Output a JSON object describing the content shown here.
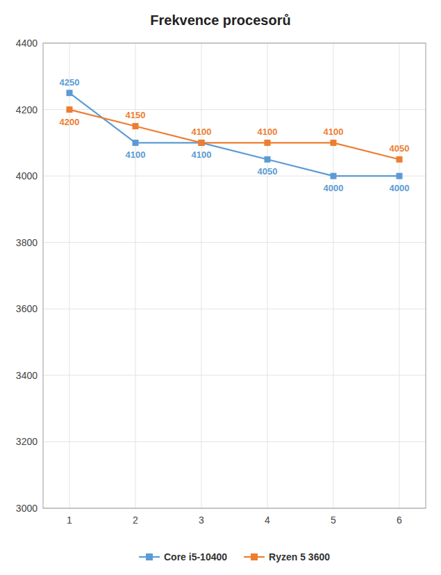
{
  "chart_data": {
    "type": "line",
    "title": "Frekvence procesorů",
    "x": [
      1,
      2,
      3,
      4,
      5,
      6
    ],
    "series": [
      {
        "name": "Core i5-10400",
        "color": "#5B9BD5",
        "values": [
          4250,
          4100,
          4100,
          4050,
          4000,
          4000
        ]
      },
      {
        "name": "Ryzen 5 3600",
        "color": "#ED7D31",
        "values": [
          4200,
          4150,
          4100,
          4100,
          4100,
          4050
        ]
      }
    ],
    "xlim": [
      0.6,
      6.4
    ],
    "xticks": [
      1,
      2,
      3,
      4,
      5,
      6
    ],
    "ylim": [
      3000,
      4400
    ],
    "yticks": [
      3000,
      3200,
      3400,
      3600,
      3800,
      4000,
      4200,
      4400
    ],
    "grid": true,
    "legend": "bottom",
    "data_labels": true,
    "marker": "square"
  }
}
